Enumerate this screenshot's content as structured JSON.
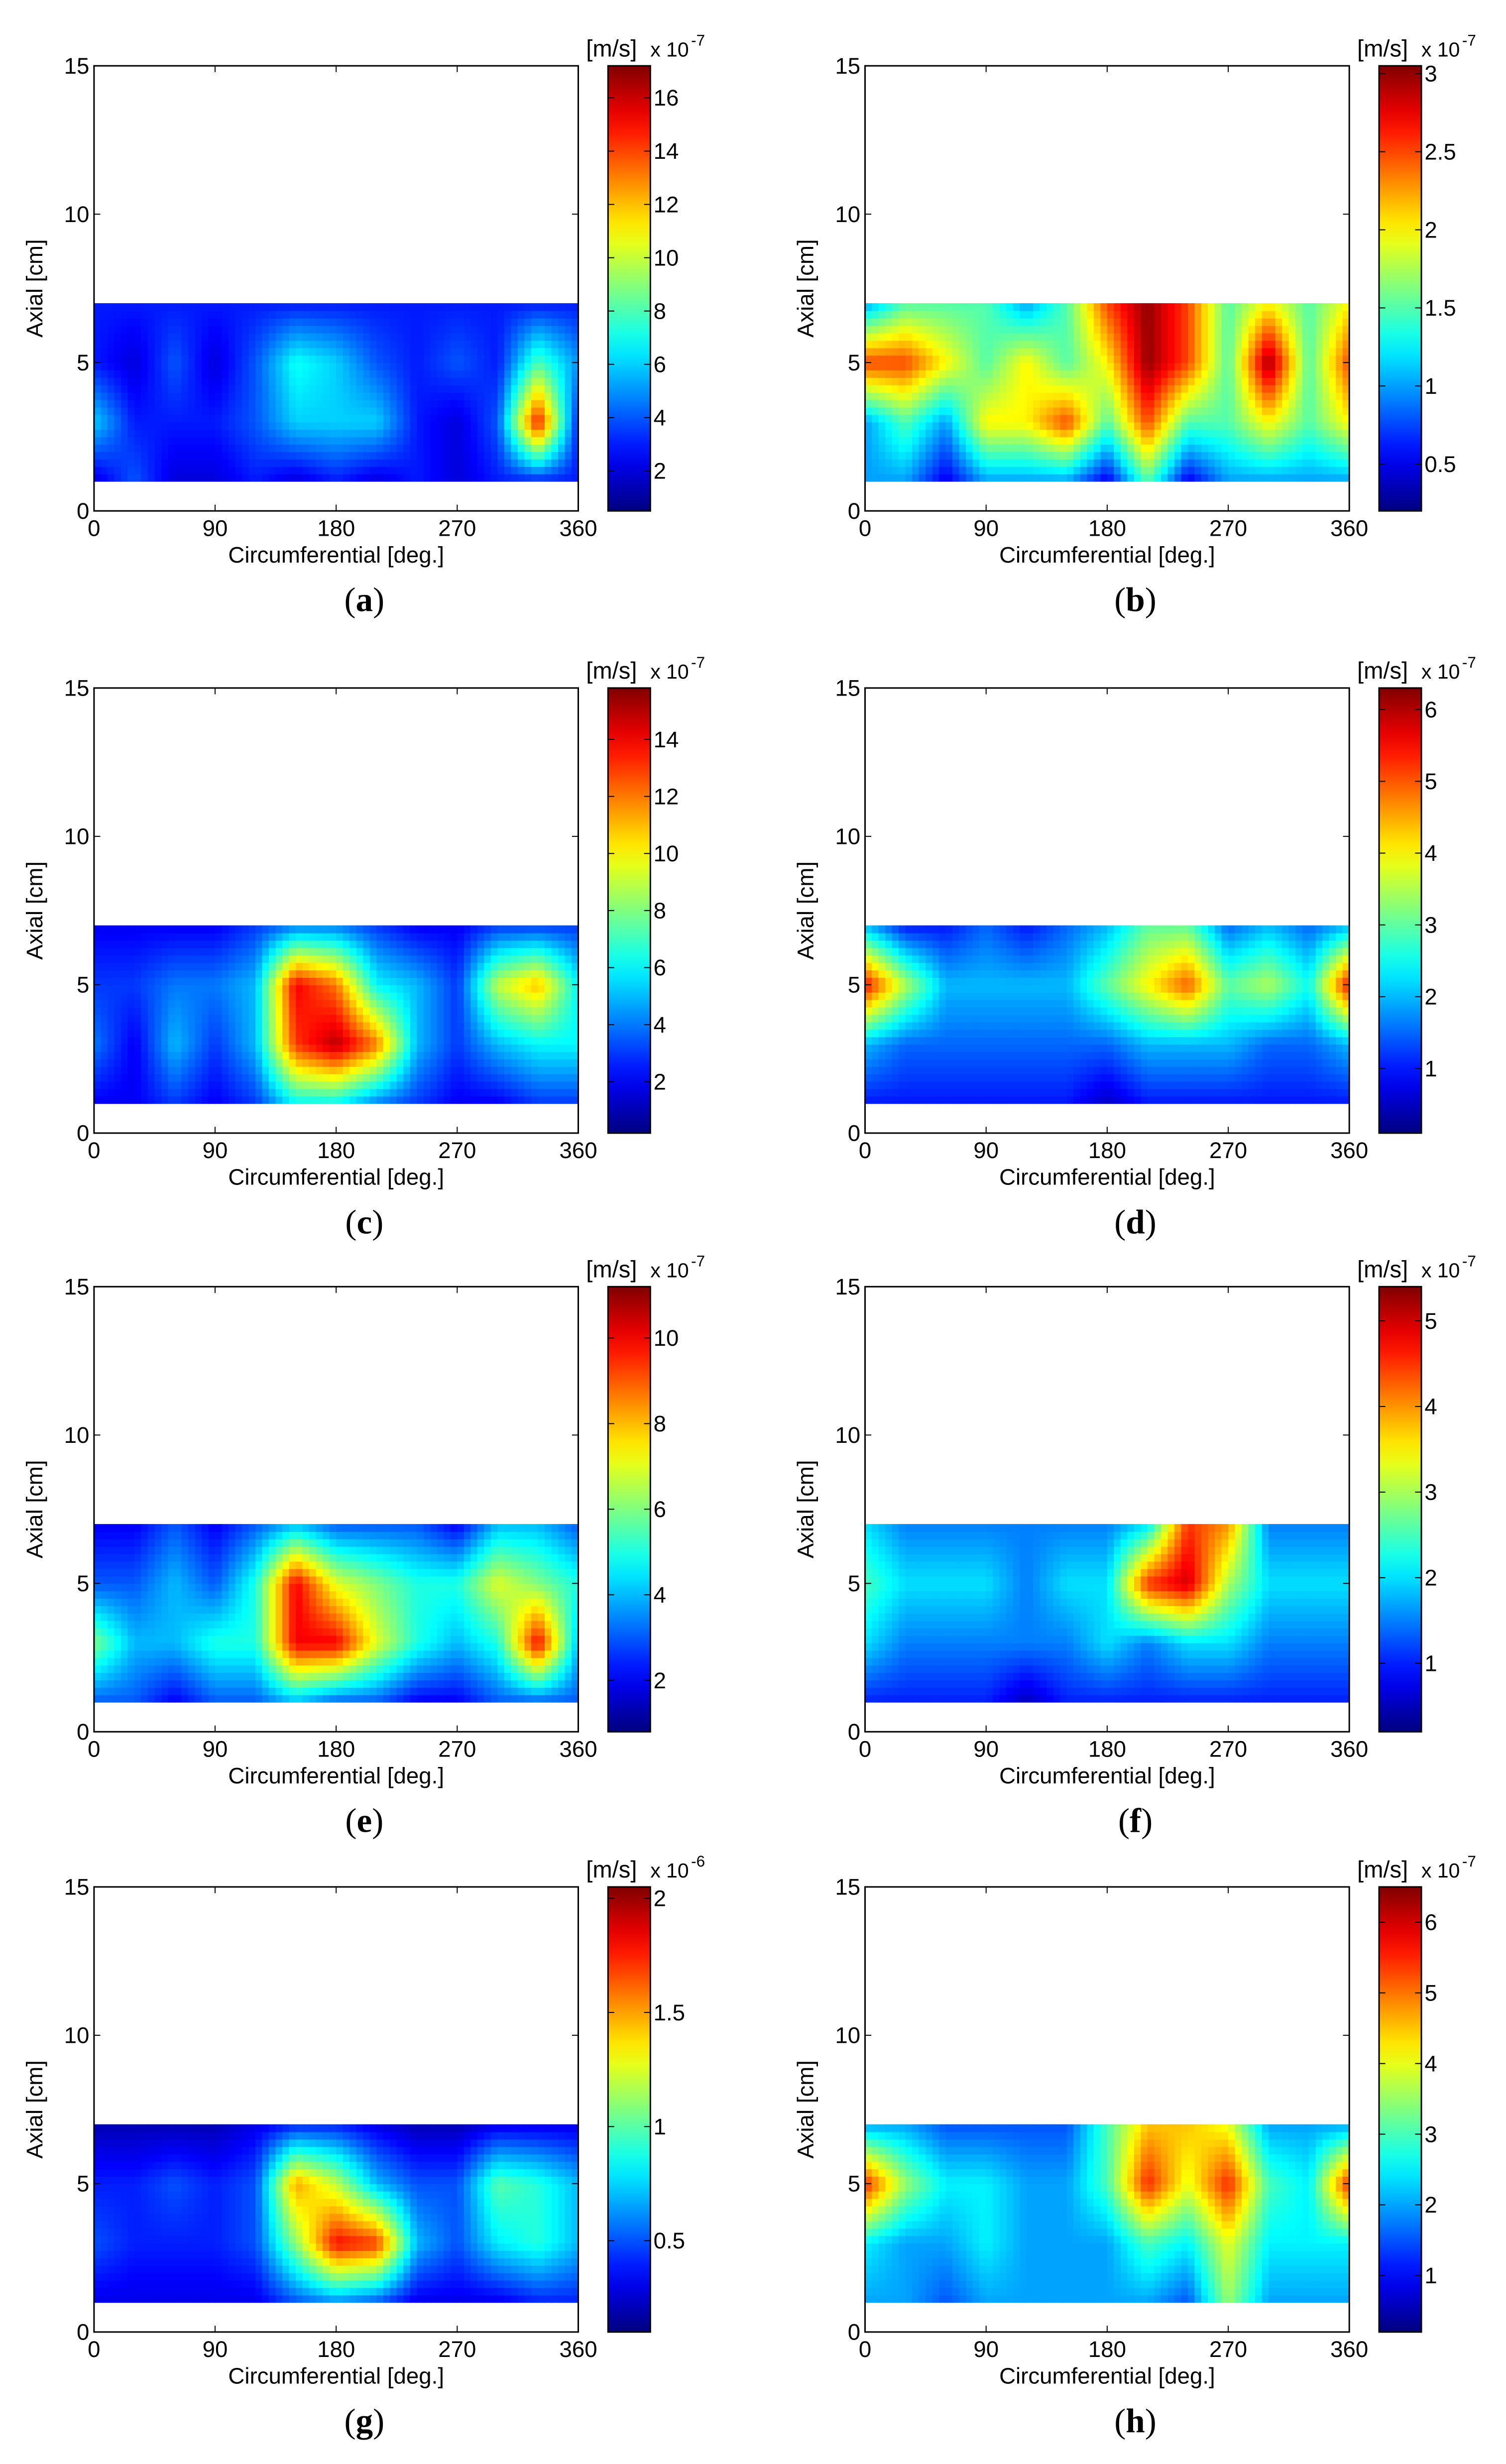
{
  "figure": {
    "panels": [
      {
        "caption": "(a)",
        "caption_letter": "a",
        "colorbar": {
          "unit": "[m/s]",
          "exponent_base": "x 10",
          "exponent": "-7",
          "ticks": [
            "2",
            "4",
            "6",
            "8",
            "10",
            "12",
            "14",
            "16"
          ],
          "tick_values": [
            2,
            4,
            6,
            8,
            10,
            12,
            14,
            16
          ],
          "min": 0.5,
          "max": 17.2
        }
      },
      {
        "caption": "(b)",
        "caption_letter": "b",
        "colorbar": {
          "unit": "[m/s]",
          "exponent_base": "x 10",
          "exponent": "-7",
          "ticks": [
            "0.5",
            "1",
            "1.5",
            "2",
            "2.5",
            "3"
          ],
          "tick_values": [
            0.5,
            1,
            1.5,
            2,
            2.5,
            3
          ],
          "min": 0.2,
          "max": 3.05
        }
      },
      {
        "caption": "(c)",
        "caption_letter": "c",
        "colorbar": {
          "unit": "[m/s]",
          "exponent_base": "x 10",
          "exponent": "-7",
          "ticks": [
            "2",
            "4",
            "6",
            "8",
            "10",
            "12",
            "14"
          ],
          "tick_values": [
            2,
            4,
            6,
            8,
            10,
            12,
            14
          ],
          "min": 0.2,
          "max": 15.8
        }
      },
      {
        "caption": "(d)",
        "caption_letter": "d",
        "colorbar": {
          "unit": "[m/s]",
          "exponent_base": "x 10",
          "exponent": "-7",
          "ticks": [
            "1",
            "2",
            "3",
            "4",
            "5",
            "6"
          ],
          "tick_values": [
            1,
            2,
            3,
            4,
            5,
            6
          ],
          "min": 0.1,
          "max": 6.3
        }
      },
      {
        "caption": "(e)",
        "caption_letter": "e",
        "colorbar": {
          "unit": "[m/s]",
          "exponent_base": "x 10",
          "exponent": "-7",
          "ticks": [
            "2",
            "4",
            "6",
            "8",
            "10"
          ],
          "tick_values": [
            2,
            4,
            6,
            8,
            10
          ],
          "min": 0.8,
          "max": 11.2
        }
      },
      {
        "caption": "(f)",
        "caption_letter": "f",
        "colorbar": {
          "unit": "[m/s]",
          "exponent_base": "x 10",
          "exponent": "-7",
          "ticks": [
            "1",
            "2",
            "3",
            "4",
            "5"
          ],
          "tick_values": [
            1,
            2,
            3,
            4,
            5
          ],
          "min": 0.2,
          "max": 5.4
        }
      },
      {
        "caption": "(g)",
        "caption_letter": "g",
        "colorbar": {
          "unit": "[m/s]",
          "exponent_base": "x 10",
          "exponent": "-6",
          "ticks": [
            "0.5",
            "1",
            "1.5",
            "2"
          ],
          "tick_values": [
            0.5,
            1,
            1.5,
            2
          ],
          "min": 0.1,
          "max": 2.05
        }
      },
      {
        "caption": "(h)",
        "caption_letter": "h",
        "colorbar": {
          "unit": "[m/s]",
          "exponent_base": "x 10",
          "exponent": "-7",
          "ticks": [
            "1",
            "2",
            "3",
            "4",
            "5",
            "6"
          ],
          "tick_values": [
            1,
            2,
            3,
            4,
            5,
            6
          ],
          "min": 0.2,
          "max": 6.5
        }
      }
    ]
  },
  "chart_data": [
    {
      "type": "heatmap",
      "panel": "a",
      "xlabel": "Circumferential [deg.]",
      "ylabel": "Axial [cm]",
      "xticks": [
        "0",
        "90",
        "180",
        "270",
        "360"
      ],
      "yticks": [
        "0",
        "5",
        "10",
        "15"
      ],
      "xlim": [
        0,
        360
      ],
      "ylim": [
        0,
        15
      ],
      "data_extent_y": [
        1,
        7
      ],
      "colormap": "jet",
      "x": [
        0,
        30,
        60,
        90,
        120,
        150,
        180,
        210,
        240,
        270,
        300,
        330,
        360
      ],
      "y": [
        1,
        3,
        5,
        7
      ],
      "z": [
        [
          2,
          4,
          2,
          2,
          3,
          2,
          3,
          2,
          3,
          2,
          3,
          3,
          3
        ],
        [
          6,
          3,
          3,
          3,
          4,
          6,
          6,
          6,
          3,
          2,
          4,
          15,
          3
        ],
        [
          3,
          2,
          4,
          2,
          4,
          7,
          6,
          4,
          3,
          4,
          3,
          8,
          5
        ],
        [
          3,
          3,
          3,
          3,
          3,
          3,
          3,
          3,
          3,
          3,
          3,
          3,
          3
        ]
      ]
    },
    {
      "type": "heatmap",
      "panel": "b",
      "xlabel": "Circumferential [deg.]",
      "ylabel": "Axial [cm]",
      "xticks": [
        "0",
        "90",
        "180",
        "270",
        "360"
      ],
      "yticks": [
        "0",
        "5",
        "10",
        "15"
      ],
      "xlim": [
        0,
        360
      ],
      "ylim": [
        0,
        15
      ],
      "data_extent_y": [
        1,
        7
      ],
      "colormap": "jet",
      "x": [
        0,
        30,
        60,
        90,
        120,
        150,
        180,
        210,
        240,
        270,
        300,
        330,
        360
      ],
      "y": [
        1,
        3,
        5,
        7
      ],
      "z": [
        [
          1,
          1,
          0.5,
          1,
          1,
          1,
          0.5,
          1.5,
          0.5,
          1,
          1,
          1,
          1
        ],
        [
          1,
          1.5,
          1,
          2,
          2,
          2.5,
          1.5,
          2.5,
          1.5,
          1.5,
          2,
          1.5,
          2
        ],
        [
          2.5,
          2.5,
          2,
          1.5,
          2,
          1.5,
          2,
          3,
          2.5,
          1.5,
          3,
          1.5,
          2.5
        ],
        [
          1,
          1.5,
          1.5,
          1.5,
          1,
          1.5,
          2.5,
          3,
          2.5,
          1.5,
          2,
          1.5,
          2
        ]
      ]
    },
    {
      "type": "heatmap",
      "panel": "c",
      "xlabel": "Circumferential [deg.]",
      "ylabel": "Axial [cm]",
      "xticks": [
        "0",
        "90",
        "180",
        "270",
        "360"
      ],
      "yticks": [
        "0",
        "5",
        "10",
        "15"
      ],
      "xlim": [
        0,
        360
      ],
      "ylim": [
        0,
        15
      ],
      "data_extent_y": [
        1,
        7
      ],
      "colormap": "jet",
      "x": [
        0,
        30,
        60,
        90,
        120,
        150,
        180,
        210,
        240,
        270,
        300,
        330,
        360
      ],
      "y": [
        1,
        3,
        5,
        7
      ],
      "z": [
        [
          2,
          2,
          3,
          2,
          3,
          6,
          6,
          4,
          3,
          2,
          2,
          3,
          3
        ],
        [
          4,
          2,
          5,
          3,
          5,
          13,
          15,
          12,
          5,
          3,
          5,
          6,
          6
        ],
        [
          3,
          3,
          4,
          4,
          5,
          14,
          12,
          6,
          5,
          3,
          9,
          11,
          6
        ],
        [
          2,
          2,
          2,
          2,
          3,
          4,
          4,
          3,
          2,
          2,
          3,
          3,
          3
        ]
      ]
    },
    {
      "type": "heatmap",
      "panel": "d",
      "xlabel": "Circumferential [deg.]",
      "ylabel": "Axial [cm]",
      "xticks": [
        "0",
        "90",
        "180",
        "270",
        "360"
      ],
      "yticks": [
        "0",
        "5",
        "10",
        "15"
      ],
      "xlim": [
        0,
        360
      ],
      "ylim": [
        0,
        15
      ],
      "data_extent_y": [
        1,
        7
      ],
      "colormap": "jet",
      "x": [
        0,
        30,
        60,
        90,
        120,
        150,
        180,
        210,
        240,
        270,
        300,
        330,
        360
      ],
      "y": [
        1,
        3,
        5,
        7
      ],
      "z": [
        [
          1,
          1,
          1,
          1,
          1,
          1,
          0.5,
          1,
          1,
          1,
          1,
          1,
          1
        ],
        [
          2,
          1.5,
          1.5,
          1.5,
          1.5,
          1.5,
          1.5,
          2,
          2,
          2,
          1.5,
          1.5,
          2
        ],
        [
          5.5,
          3.5,
          2,
          2,
          2,
          2,
          3,
          4,
          5,
          3,
          3.5,
          2.5,
          5.5
        ],
        [
          2,
          1,
          1,
          1.5,
          1,
          1.5,
          2,
          3,
          3,
          1.5,
          2,
          1.5,
          2
        ]
      ]
    },
    {
      "type": "heatmap",
      "panel": "e",
      "xlabel": "Circumferential [deg.]",
      "ylabel": "Axial [cm]",
      "xticks": [
        "0",
        "90",
        "180",
        "270",
        "360"
      ],
      "yticks": [
        "0",
        "5",
        "10",
        "15"
      ],
      "xlim": [
        0,
        360
      ],
      "ylim": [
        0,
        15
      ],
      "data_extent_y": [
        1,
        7
      ],
      "colormap": "jet",
      "x": [
        0,
        30,
        60,
        90,
        120,
        150,
        180,
        210,
        240,
        270,
        300,
        330,
        360
      ],
      "y": [
        1,
        3,
        5,
        7
      ],
      "z": [
        [
          3,
          3,
          2,
          3,
          3,
          4,
          3,
          3,
          2,
          2,
          3,
          3,
          3
        ],
        [
          6,
          4,
          4,
          5,
          5,
          10,
          10,
          7,
          5,
          4,
          5,
          10,
          4
        ],
        [
          3,
          3,
          4,
          3,
          5,
          10,
          7,
          6,
          5,
          5,
          7,
          6,
          5
        ],
        [
          2,
          2,
          3,
          2,
          3,
          4,
          3,
          3,
          3,
          2,
          4,
          4,
          3
        ]
      ]
    },
    {
      "type": "heatmap",
      "panel": "f",
      "xlabel": "Circumferential [deg.]",
      "ylabel": "Axial [cm]",
      "xticks": [
        "0",
        "90",
        "180",
        "270",
        "360"
      ],
      "yticks": [
        "0",
        "5",
        "10",
        "15"
      ],
      "xlim": [
        0,
        360
      ],
      "ylim": [
        0,
        15
      ],
      "data_extent_y": [
        1,
        7
      ],
      "colormap": "jet",
      "x": [
        0,
        30,
        60,
        90,
        120,
        150,
        180,
        210,
        240,
        270,
        300,
        330,
        360
      ],
      "y": [
        1,
        3,
        5,
        7
      ],
      "z": [
        [
          1,
          1,
          1,
          1,
          0.5,
          1,
          1,
          1,
          1,
          1,
          1,
          1,
          1
        ],
        [
          2,
          1.5,
          1.5,
          1.5,
          1.5,
          1.5,
          2,
          1.5,
          2,
          2,
          1.5,
          1.5,
          1.5
        ],
        [
          2.5,
          2,
          2,
          2,
          1.5,
          2,
          2,
          4.5,
          5,
          3,
          2,
          2,
          2
        ],
        [
          2,
          1.5,
          1.5,
          1.5,
          1.5,
          1.5,
          1.5,
          2,
          4.5,
          4,
          1.5,
          1.5,
          1.5
        ]
      ]
    },
    {
      "type": "heatmap",
      "panel": "g",
      "xlabel": "Circumferential [deg.]",
      "ylabel": "Axial [cm]",
      "xticks": [
        "0",
        "90",
        "180",
        "270",
        "360"
      ],
      "yticks": [
        "0",
        "5",
        "10",
        "15"
      ],
      "xlim": [
        0,
        360
      ],
      "ylim": [
        0,
        15
      ],
      "data_extent_y": [
        1,
        7
      ],
      "colormap": "jet",
      "x": [
        0,
        30,
        60,
        90,
        120,
        150,
        180,
        210,
        240,
        270,
        300,
        330,
        360
      ],
      "y": [
        1,
        3,
        5,
        7
      ],
      "z": [
        [
          0.3,
          0.3,
          0.3,
          0.3,
          0.3,
          0.5,
          0.6,
          0.5,
          0.3,
          0.3,
          0.3,
          0.4,
          0.4
        ],
        [
          0.5,
          0.4,
          0.4,
          0.4,
          0.5,
          1.1,
          1.8,
          1.7,
          0.7,
          0.5,
          0.8,
          0.9,
          0.7
        ],
        [
          0.4,
          0.4,
          0.5,
          0.4,
          0.5,
          1.5,
          1.2,
          0.7,
          0.5,
          0.5,
          1,
          0.9,
          0.7
        ],
        [
          0.2,
          0.2,
          0.2,
          0.2,
          0.3,
          0.4,
          0.4,
          0.3,
          0.2,
          0.2,
          0.3,
          0.3,
          0.3
        ]
      ]
    },
    {
      "type": "heatmap",
      "panel": "h",
      "xlabel": "Circumferential [deg.]",
      "ylabel": "Axial [cm]",
      "xticks": [
        "0",
        "90",
        "180",
        "270",
        "360"
      ],
      "yticks": [
        "0",
        "5",
        "10",
        "15"
      ],
      "xlim": [
        0,
        360
      ],
      "ylim": [
        0,
        15
      ],
      "data_extent_y": [
        1,
        7
      ],
      "colormap": "jet",
      "x": [
        0,
        30,
        60,
        90,
        120,
        150,
        180,
        210,
        240,
        270,
        300,
        330,
        360
      ],
      "y": [
        1,
        3,
        5,
        7
      ],
      "z": [
        [
          2,
          2,
          1.5,
          2,
          2,
          2,
          2,
          2,
          1.5,
          3.5,
          2,
          2,
          2
        ],
        [
          2.5,
          2,
          2,
          2.5,
          2,
          2,
          2,
          3,
          2.5,
          4,
          2.5,
          2.5,
          2.5
        ],
        [
          5.5,
          3.5,
          2.5,
          2.5,
          2,
          2,
          3,
          5.5,
          4,
          5.5,
          3,
          2.5,
          5.5
        ],
        [
          2,
          2,
          1.5,
          1.5,
          1.5,
          1.5,
          3,
          4.5,
          4.5,
          4,
          2,
          2,
          2
        ]
      ]
    }
  ]
}
